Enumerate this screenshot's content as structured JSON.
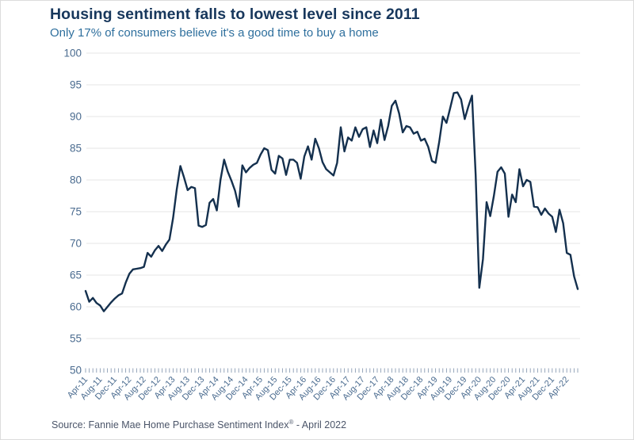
{
  "header": {
    "title": "Housing sentiment falls to lowest level since 2011",
    "subtitle": "Only 17% of consumers believe it's a good time to buy a home"
  },
  "source": {
    "prefix": "Source: Fannie Mae Home Purchase Sentiment Index",
    "registered_mark": "®",
    "suffix": " - April 2022"
  },
  "chart_data": {
    "type": "line",
    "title": "Housing sentiment falls to lowest level since 2011",
    "subtitle": "Only 17% of consumers believe it's a good time to buy a home",
    "frequency": "monthly",
    "start_month": "Apr-11",
    "series": [
      {
        "name": "Fannie Mae Home Purchase Sentiment Index",
        "values": [
          62.5,
          60.8,
          61.4,
          60.6,
          60.2,
          59.3,
          60.0,
          60.7,
          61.3,
          61.8,
          62.1,
          63.8,
          65.2,
          65.9,
          66.0,
          66.1,
          66.3,
          68.5,
          67.9,
          68.9,
          69.6,
          68.8,
          69.8,
          70.6,
          74.0,
          78.5,
          82.2,
          80.4,
          78.4,
          78.9,
          78.7,
          72.8,
          72.6,
          72.9,
          76.4,
          77.0,
          75.2,
          80.0,
          83.2,
          81.3,
          79.9,
          78.3,
          75.8,
          82.3,
          81.2,
          81.9,
          82.4,
          82.7,
          84.0,
          85.0,
          84.7,
          81.6,
          81.0,
          83.8,
          83.4,
          80.8,
          83.2,
          83.2,
          82.7,
          80.2,
          83.7,
          85.3,
          83.2,
          86.5,
          85.0,
          82.8,
          81.7,
          81.2,
          80.7,
          82.7,
          88.3,
          84.5,
          86.7,
          86.2,
          88.3,
          86.8,
          88.0,
          88.3,
          85.2,
          87.8,
          85.8,
          89.5,
          86.3,
          88.5,
          91.7,
          92.5,
          90.5,
          87.5,
          88.5,
          88.3,
          87.3,
          87.6,
          86.2,
          86.5,
          85.2,
          83.0,
          82.7,
          86.0,
          90.0,
          89.0,
          91.3,
          93.7,
          93.8,
          92.7,
          89.6,
          91.6,
          93.3,
          80.8,
          63.0,
          67.5,
          76.5,
          74.3,
          77.5,
          81.3,
          82.0,
          81.0,
          74.2,
          77.7,
          76.5,
          81.7,
          79.0,
          80.0,
          79.7,
          75.8,
          75.7,
          74.5,
          75.5,
          74.7,
          74.2,
          71.8,
          75.3,
          73.2,
          68.5,
          68.2,
          64.8,
          62.8
        ]
      }
    ],
    "x_axis": {
      "tick_labels": [
        "Apr-11",
        "Aug-11",
        "Dec-11",
        "Apr-12",
        "Aug-12",
        "Dec-12",
        "Apr-13",
        "Aug-13",
        "Dec-13",
        "Apr-14",
        "Aug-14",
        "Dec-14",
        "Apr-15",
        "Aug-15",
        "Dec-15",
        "Apr-16",
        "Aug-16",
        "Dec-16",
        "Apr-17",
        "Aug-17",
        "Dec-17",
        "Apr-18",
        "Aug-18",
        "Dec-18",
        "Apr-19",
        "Aug-19",
        "Dec-19",
        "Apr-20",
        "Aug-20",
        "Dec-20",
        "Apr-21",
        "Aug-21",
        "Dec-21",
        "Apr-22"
      ],
      "months_per_labeled_tick": 4,
      "minor_ticks_monthly": true
    },
    "y_axis": {
      "min": 50,
      "max": 100,
      "tick_step": 5,
      "ticks": [
        50,
        55,
        60,
        65,
        70,
        75,
        80,
        85,
        90,
        95,
        100
      ]
    },
    "grid": "horizontal",
    "legend": "none",
    "colors": {
      "line": "#14304e",
      "gridline": "#e4e4e4",
      "axis_label": "#4a6b8f",
      "tick": "#8a9cb3",
      "title": "#17375c",
      "subtitle": "#2e6f9d"
    }
  }
}
